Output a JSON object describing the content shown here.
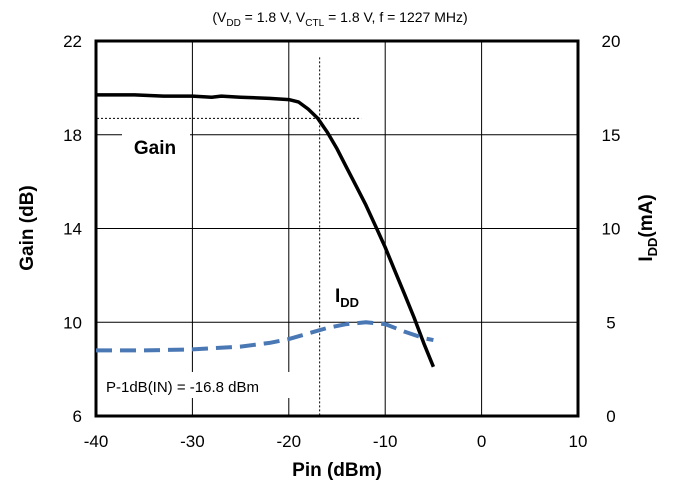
{
  "chart_data": {
    "type": "line",
    "title": {
      "prefix": "(V",
      "sub1": "DD",
      "mid1": " = 1.8 V, V",
      "sub2": "CTL",
      "suffix": " = 1.8 V, f = 1227 MHz)"
    },
    "xlabel": "Pin (dBm)",
    "ylabel": "Gain (dB)",
    "y2label": {
      "main": "I",
      "sub": "DD",
      "suffix": "(mA)"
    },
    "xlim": [
      -40,
      10
    ],
    "ylim": [
      6,
      22
    ],
    "y2lim": [
      0,
      20
    ],
    "x_ticks": [
      "-40",
      "-30",
      "-20",
      "-10",
      "0",
      "10"
    ],
    "y_ticks": [
      "6",
      "10",
      "14",
      "18",
      "22"
    ],
    "y2_ticks": [
      "0",
      "5",
      "10",
      "15",
      "20"
    ],
    "grid": true,
    "series": [
      {
        "name": "Gain",
        "axis": "left",
        "color": "#000000",
        "style": "solid",
        "x": [
          -40,
          -36,
          -33,
          -30,
          -28,
          -27,
          -25,
          -22,
          -20,
          -19,
          -18,
          -17,
          -16,
          -15,
          -14,
          -13,
          -12,
          -11,
          -10,
          -9,
          -8,
          -7,
          -6,
          -5
        ],
        "y": [
          19.7,
          19.7,
          19.65,
          19.65,
          19.6,
          19.65,
          19.6,
          19.55,
          19.5,
          19.4,
          19.1,
          18.7,
          18.1,
          17.4,
          16.6,
          15.8,
          15.0,
          14.1,
          13.2,
          12.2,
          11.2,
          10.2,
          9.1,
          8.1
        ]
      },
      {
        "name": "IDD",
        "label": {
          "main": "I",
          "sub": "DD"
        },
        "axis": "right",
        "color": "#4a78b4",
        "style": "dashed",
        "x": [
          -40,
          -35,
          -30,
          -25,
          -22,
          -20,
          -18,
          -16,
          -14,
          -12,
          -10,
          -8,
          -6,
          -5
        ],
        "y": [
          3.5,
          3.5,
          3.55,
          3.7,
          3.9,
          4.1,
          4.4,
          4.7,
          4.9,
          5.0,
          4.9,
          4.5,
          4.15,
          4.05
        ]
      }
    ],
    "annotations": {
      "p1db_text": "P-1dB(IN) = -16.8 dBm",
      "p1db_x": -16.8,
      "p1db_gain": 18.7
    }
  }
}
